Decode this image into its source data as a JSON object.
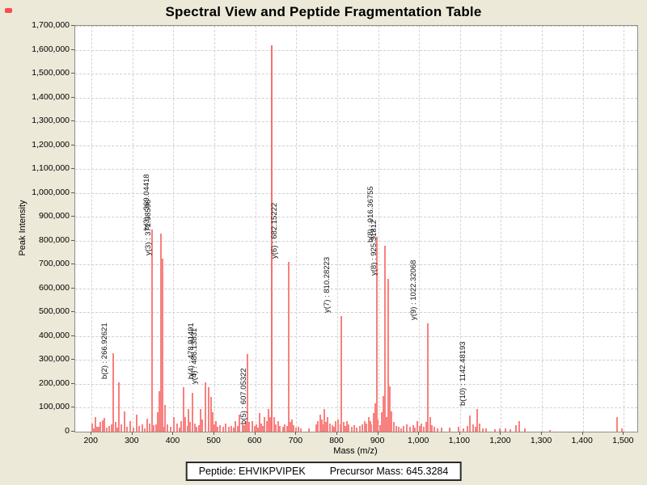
{
  "title": "Spectral View and Peptide Fragmentation Table",
  "footer": {
    "peptide": "Peptide: EHVIKPVIPEK",
    "precursor": "Precursor Mass: 645.3284"
  },
  "colors": {
    "background": "#ece9d8",
    "plot_background": "#ffffff",
    "peak": "#f8807e",
    "grid": "#cfcfcf",
    "marker": "#f74e4e"
  },
  "chart_data": {
    "type": "bar",
    "title": "Spectral View and Peptide Fragmentation Table",
    "xlabel": "Mass (m/z)",
    "ylabel": "Peak Intensity",
    "xlim": [
      160,
      1533
    ],
    "ylim": [
      0,
      1700000
    ],
    "grid": "dashed",
    "legend": "none",
    "x_ticks": {
      "values": [
        200,
        300,
        400,
        500,
        600,
        700,
        800,
        900,
        1000,
        1100,
        1200,
        1300,
        1400,
        1500
      ],
      "labels": [
        "200",
        "300",
        "400",
        "500",
        "600",
        "700",
        "800",
        "900",
        "1,000",
        "1,100",
        "1,200",
        "1,300",
        "1,400",
        "1,500"
      ]
    },
    "y_ticks": {
      "values": [
        0,
        100000,
        200000,
        300000,
        400000,
        500000,
        600000,
        700000,
        800000,
        900000,
        1000000,
        1100000,
        1200000,
        1300000,
        1400000,
        1500000,
        1600000,
        1700000
      ],
      "labels": [
        "0",
        "100,000",
        "200,000",
        "300,000",
        "400,000",
        "500,000",
        "600,000",
        "700,000",
        "800,000",
        "900,000",
        "1,000,000",
        "1,100,000",
        "1,200,000",
        "1,300,000",
        "1,400,000",
        "1,500,000",
        "1,600,000",
        "1,700,000"
      ]
    },
    "fragments": [
      {
        "ion": "b(2)",
        "mz": 266.93,
        "intensity": 205000,
        "label": "b(2) : 266.92621"
      },
      {
        "ion": "b(3)",
        "mz": 369.04,
        "intensity": 830000,
        "label": "b(3) : 369.04418"
      },
      {
        "ion": "y(3)",
        "mz": 372.99,
        "intensity": 725000,
        "label": "y(3) : 372.98596"
      },
      {
        "ion": "b(4)",
        "mz": 478.91,
        "intensity": 205000,
        "label": "b(4) : 478.91491"
      },
      {
        "ion": "y(4)",
        "mz": 486.14,
        "intensity": 185000,
        "label": "y(4) : 486.13831"
      },
      {
        "ion": "b(5)",
        "mz": 607.05,
        "intensity": 18000,
        "label": "b(5) : 607.05322"
      },
      {
        "ion": "y(6)",
        "mz": 682.15,
        "intensity": 710000,
        "label": "y(6) : 682.15222"
      },
      {
        "ion": "y(7)",
        "mz": 810.28,
        "intensity": 485000,
        "label": "y(7) : 810.28223"
      },
      {
        "ion": "b(8)",
        "mz": 916.37,
        "intensity": 780000,
        "label": "b(8) : 916.36755"
      },
      {
        "ion": "y(8)",
        "mz": 925.32,
        "intensity": 640000,
        "label": "y(8) : 925.31812"
      },
      {
        "ion": "y(9)",
        "mz": 1022.32,
        "intensity": 455000,
        "label": "y(9) : 1022.32068"
      },
      {
        "ion": "b(10)",
        "mz": 1142.48,
        "intensity": 95000,
        "label": "b(10) : 1142.48193"
      }
    ],
    "unlabeled_peaks": [
      [
        201,
        35000
      ],
      [
        206,
        15000
      ],
      [
        209,
        62000
      ],
      [
        214,
        20000
      ],
      [
        218,
        22000
      ],
      [
        222,
        40000
      ],
      [
        227,
        48000
      ],
      [
        232,
        58000
      ],
      [
        238,
        18000
      ],
      [
        243,
        25000
      ],
      [
        248,
        30000
      ],
      [
        252,
        330000
      ],
      [
        258,
        42000
      ],
      [
        262,
        18000
      ],
      [
        273,
        30000
      ],
      [
        280,
        85000
      ],
      [
        287,
        22000
      ],
      [
        295,
        44000
      ],
      [
        303,
        18000
      ],
      [
        311,
        72000
      ],
      [
        317,
        25000
      ],
      [
        323,
        32000
      ],
      [
        330,
        15000
      ],
      [
        336,
        55000
      ],
      [
        341,
        35000
      ],
      [
        347,
        845000
      ],
      [
        352,
        28000
      ],
      [
        357,
        30000
      ],
      [
        361,
        82000
      ],
      [
        365,
        170000
      ],
      [
        377,
        20000
      ],
      [
        380,
        112000
      ],
      [
        386,
        30000
      ],
      [
        393,
        22000
      ],
      [
        402,
        62000
      ],
      [
        408,
        35000
      ],
      [
        414,
        18000
      ],
      [
        418,
        45000
      ],
      [
        424,
        186000
      ],
      [
        429,
        60000
      ],
      [
        434,
        25000
      ],
      [
        437,
        95000
      ],
      [
        441,
        40000
      ],
      [
        447,
        163000
      ],
      [
        452,
        35000
      ],
      [
        457,
        20000
      ],
      [
        462,
        28000
      ],
      [
        467,
        95000
      ],
      [
        471,
        50000
      ],
      [
        491,
        145000
      ],
      [
        495,
        80000
      ],
      [
        500,
        30000
      ],
      [
        504,
        44000
      ],
      [
        508,
        20000
      ],
      [
        513,
        27000
      ],
      [
        521,
        20000
      ],
      [
        527,
        35000
      ],
      [
        535,
        22000
      ],
      [
        541,
        25000
      ],
      [
        548,
        18000
      ],
      [
        552,
        44000
      ],
      [
        558,
        25000
      ],
      [
        562,
        70000
      ],
      [
        568,
        30000
      ],
      [
        572,
        27000
      ],
      [
        577,
        45000
      ],
      [
        580,
        325000
      ],
      [
        585,
        40000
      ],
      [
        592,
        44000
      ],
      [
        598,
        25000
      ],
      [
        603,
        30000
      ],
      [
        611,
        78000
      ],
      [
        615,
        35000
      ],
      [
        619,
        25000
      ],
      [
        623,
        62000
      ],
      [
        628,
        45000
      ],
      [
        633,
        95000
      ],
      [
        637,
        60000
      ],
      [
        640,
        1620000
      ],
      [
        645,
        60000
      ],
      [
        649,
        30000
      ],
      [
        655,
        44000
      ],
      [
        660,
        25000
      ],
      [
        668,
        20000
      ],
      [
        672,
        30000
      ],
      [
        678,
        25000
      ],
      [
        686,
        40000
      ],
      [
        690,
        50000
      ],
      [
        694,
        27000
      ],
      [
        700,
        18000
      ],
      [
        706,
        22000
      ],
      [
        712,
        15000
      ],
      [
        730,
        12000
      ],
      [
        748,
        30000
      ],
      [
        753,
        45000
      ],
      [
        758,
        70000
      ],
      [
        762,
        50000
      ],
      [
        766,
        30000
      ],
      [
        769,
        95000
      ],
      [
        773,
        40000
      ],
      [
        777,
        62000
      ],
      [
        782,
        35000
      ],
      [
        788,
        28000
      ],
      [
        793,
        20000
      ],
      [
        797,
        44000
      ],
      [
        802,
        50000
      ],
      [
        807,
        30000
      ],
      [
        815,
        40000
      ],
      [
        820,
        25000
      ],
      [
        823,
        44000
      ],
      [
        828,
        30000
      ],
      [
        836,
        20000
      ],
      [
        842,
        27000
      ],
      [
        848,
        18000
      ],
      [
        855,
        25000
      ],
      [
        862,
        30000
      ],
      [
        868,
        44000
      ],
      [
        872,
        35000
      ],
      [
        877,
        60000
      ],
      [
        881,
        45000
      ],
      [
        884,
        30000
      ],
      [
        888,
        78000
      ],
      [
        892,
        120000
      ],
      [
        896,
        815000
      ],
      [
        899,
        50000
      ],
      [
        904,
        27000
      ],
      [
        908,
        80000
      ],
      [
        912,
        150000
      ],
      [
        920,
        60000
      ],
      [
        929,
        190000
      ],
      [
        933,
        85000
      ],
      [
        938,
        40000
      ],
      [
        944,
        25000
      ],
      [
        950,
        20000
      ],
      [
        957,
        15000
      ],
      [
        963,
        25000
      ],
      [
        970,
        30000
      ],
      [
        977,
        20000
      ],
      [
        985,
        27000
      ],
      [
        990,
        18000
      ],
      [
        995,
        44000
      ],
      [
        1001,
        25000
      ],
      [
        1006,
        35000
      ],
      [
        1012,
        20000
      ],
      [
        1018,
        40000
      ],
      [
        1028,
        60000
      ],
      [
        1032,
        27000
      ],
      [
        1038,
        20000
      ],
      [
        1046,
        15000
      ],
      [
        1055,
        18000
      ],
      [
        1075,
        17000
      ],
      [
        1096,
        20000
      ],
      [
        1108,
        15000
      ],
      [
        1118,
        25000
      ],
      [
        1125,
        68000
      ],
      [
        1131,
        30000
      ],
      [
        1137,
        20000
      ],
      [
        1148,
        35000
      ],
      [
        1155,
        15000
      ],
      [
        1163,
        12000
      ],
      [
        1185,
        10000
      ],
      [
        1198,
        12000
      ],
      [
        1210,
        15000
      ],
      [
        1222,
        10000
      ],
      [
        1237,
        27000
      ],
      [
        1245,
        44000
      ],
      [
        1258,
        12000
      ],
      [
        1320,
        8000
      ],
      [
        1484,
        62000
      ],
      [
        1495,
        15000
      ]
    ]
  }
}
